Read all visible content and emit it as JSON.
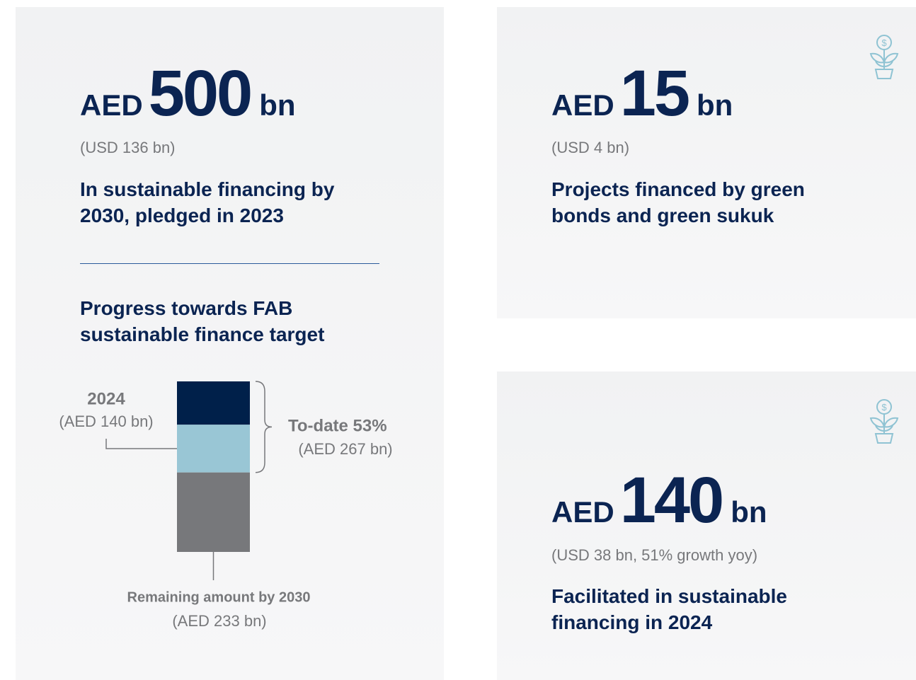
{
  "cards": [
    {
      "prefix": "AED",
      "number": "500",
      "unit": "bn",
      "sub": "(USD 136 bn)",
      "description": "In sustainable financing by 2030, pledged in 2023"
    },
    {
      "prefix": "AED",
      "number": "15",
      "unit": "bn",
      "sub": "(USD 4 bn)",
      "description": "Projects financed by green bonds and green sukuk"
    },
    {
      "prefix": "AED",
      "number": "140",
      "unit": "bn",
      "sub": "(USD 38 bn, 51% growth yoy)",
      "description": "Facilitated in sustainable financing in 2024"
    }
  ],
  "progress": {
    "title": "Progress towards FAB sustainable finance target",
    "segments": [
      {
        "value": 127,
        "color": "#00204a"
      },
      {
        "value": 140,
        "color": "#99c6d5"
      },
      {
        "value": 233,
        "color": "#77787b"
      }
    ],
    "year_label": "2024",
    "year_amount": "(AED 140 bn)",
    "todate_label": "To-date 53%",
    "todate_amount": "(AED 267 bn)",
    "remaining_label": "Remaining amount by 2030",
    "remaining_amount": "(AED 233 bn)"
  }
}
